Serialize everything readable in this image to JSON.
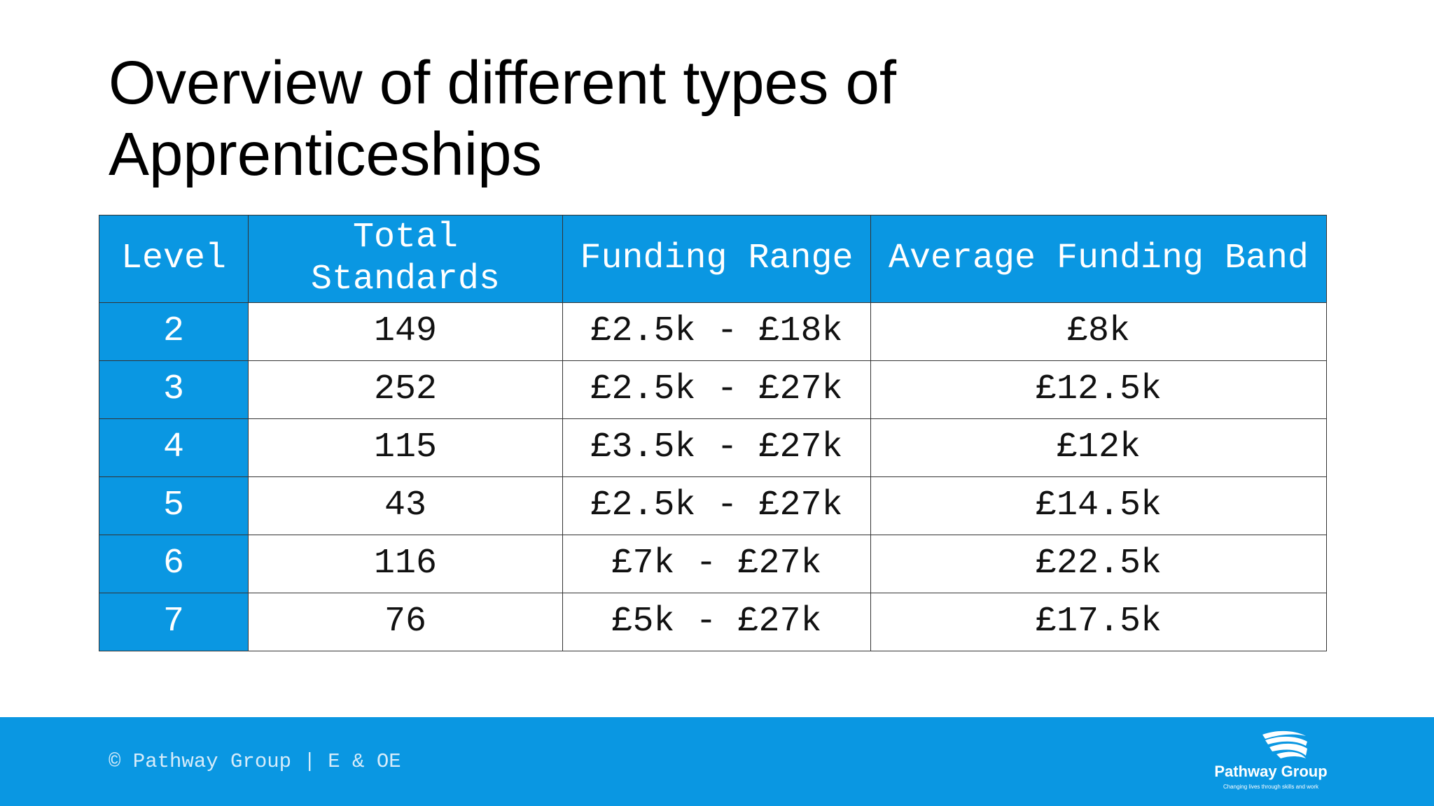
{
  "title": "Overview of different types of Apprenticeships",
  "table": {
    "header": [
      "Level",
      "Total Standards",
      "Funding Range",
      "Average Funding Band"
    ],
    "rows": [
      [
        "2",
        "149",
        "£2.5k - £18k",
        "£8k"
      ],
      [
        "3",
        "252",
        "£2.5k - £27k",
        "£12.5k"
      ],
      [
        "4",
        "115",
        "£3.5k - £27k",
        "£12k"
      ],
      [
        "5",
        "43",
        "£2.5k - £27k",
        "£14.5k"
      ],
      [
        "6",
        "116",
        "£7k - £27k",
        "£22.5k"
      ],
      [
        "7",
        "76",
        "£5k - £27k",
        "£17.5k"
      ]
    ]
  },
  "footer": {
    "text": "© Pathway Group | E & OE"
  },
  "logo": {
    "name": "Pathway Group",
    "tagline": "Changing lives through skills and work"
  }
}
